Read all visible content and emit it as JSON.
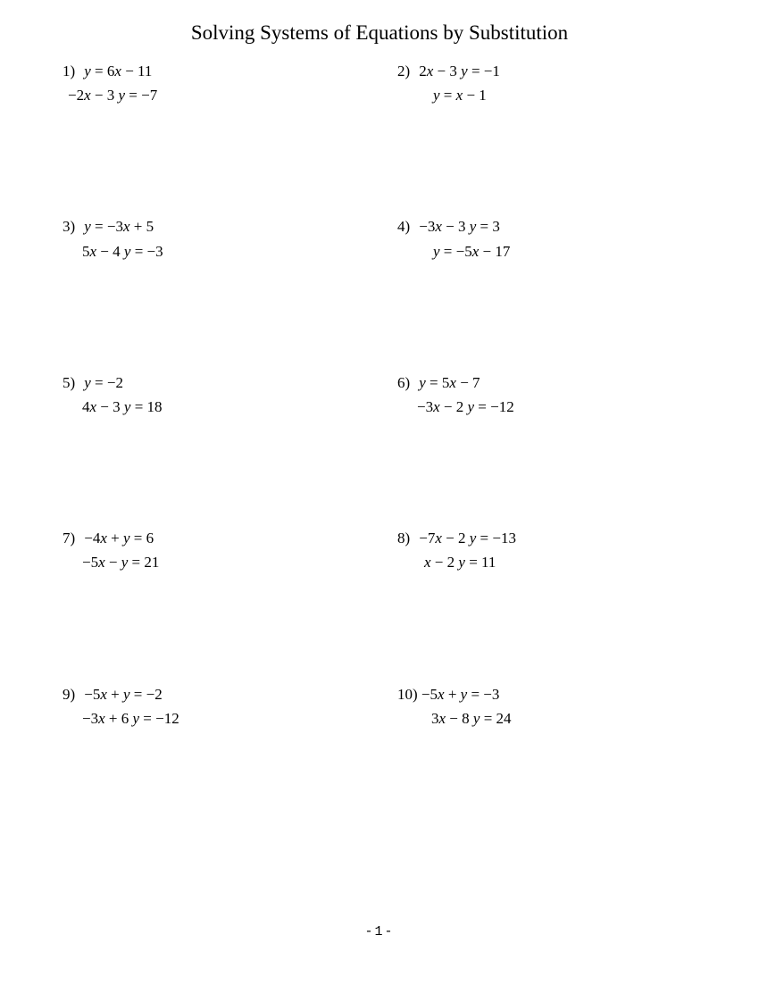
{
  "title": "Solving Systems of Equations by Substitution",
  "page_number": "-1-",
  "problems": [
    {
      "num": "1)",
      "eq1": "<span class='italic'>y</span> = 6<span class='italic'>x</span> − 11",
      "eq2": "−2<span class='italic'>x</span> − 3 <span class='italic'>y</span> = −7",
      "eq2_indent": "6px"
    },
    {
      "num": "2)",
      "eq1": "2<span class='italic'>x</span> − 3 <span class='italic'>y</span> = −1",
      "eq2": "<span class='italic'>y</span> = <span class='italic'>x</span> − 1",
      "eq2_indent": "40px"
    },
    {
      "num": "3)",
      "eq1": "<span class='italic'>y</span> = −3<span class='italic'>x</span> + 5",
      "eq2": "5<span class='italic'>x</span> − 4 <span class='italic'>y</span> = −3",
      "eq2_indent": "22px"
    },
    {
      "num": "4)",
      "eq1": "−3<span class='italic'>x</span> − 3 <span class='italic'>y</span> = 3",
      "eq2": "<span class='italic'>y</span> = −5<span class='italic'>x</span> − 17",
      "eq2_indent": "40px"
    },
    {
      "num": "5)",
      "eq1": "<span class='italic'>y</span> = −2",
      "eq2": "4<span class='italic'>x</span> − 3 <span class='italic'>y</span> = 18",
      "eq2_indent": "22px"
    },
    {
      "num": "6)",
      "eq1": "<span class='italic'>y</span> = 5<span class='italic'>x</span> − 7",
      "eq2": "−3<span class='italic'>x</span> − 2 <span class='italic'>y</span> = −12",
      "eq2_indent": "22px"
    },
    {
      "num": "7)",
      "eq1": "−4<span class='italic'>x</span> +  <span class='italic'>y</span> = 6",
      "eq2": "−5<span class='italic'>x</span> −   <span class='italic'>y</span> = 21",
      "eq2_indent": "22px"
    },
    {
      "num": "8)",
      "eq1": "−7<span class='italic'>x</span> − 2 <span class='italic'>y</span> = −13",
      "eq2": "<span class='italic'>x</span> − 2 <span class='italic'>y</span> = 11",
      "eq2_indent": "30px"
    },
    {
      "num": "9)",
      "eq1": "−5<span class='italic'>x</span> +  <span class='italic'>y</span> = −2",
      "eq2": "−3<span class='italic'>x</span> + 6 <span class='italic'>y</span> = −12",
      "eq2_indent": "22px"
    },
    {
      "num": "10)",
      "eq1": "−5<span class='italic'>x</span> +  <span class='italic'>y</span> = −3",
      "eq2": "3<span class='italic'>x</span> − 8 <span class='italic'>y</span> = 24",
      "eq2_indent": "38px"
    }
  ],
  "styles": {
    "background_color": "#ffffff",
    "text_color": "#000000",
    "title_fontsize": 23,
    "problem_fontsize": 17,
    "font_family": "Times New Roman"
  }
}
